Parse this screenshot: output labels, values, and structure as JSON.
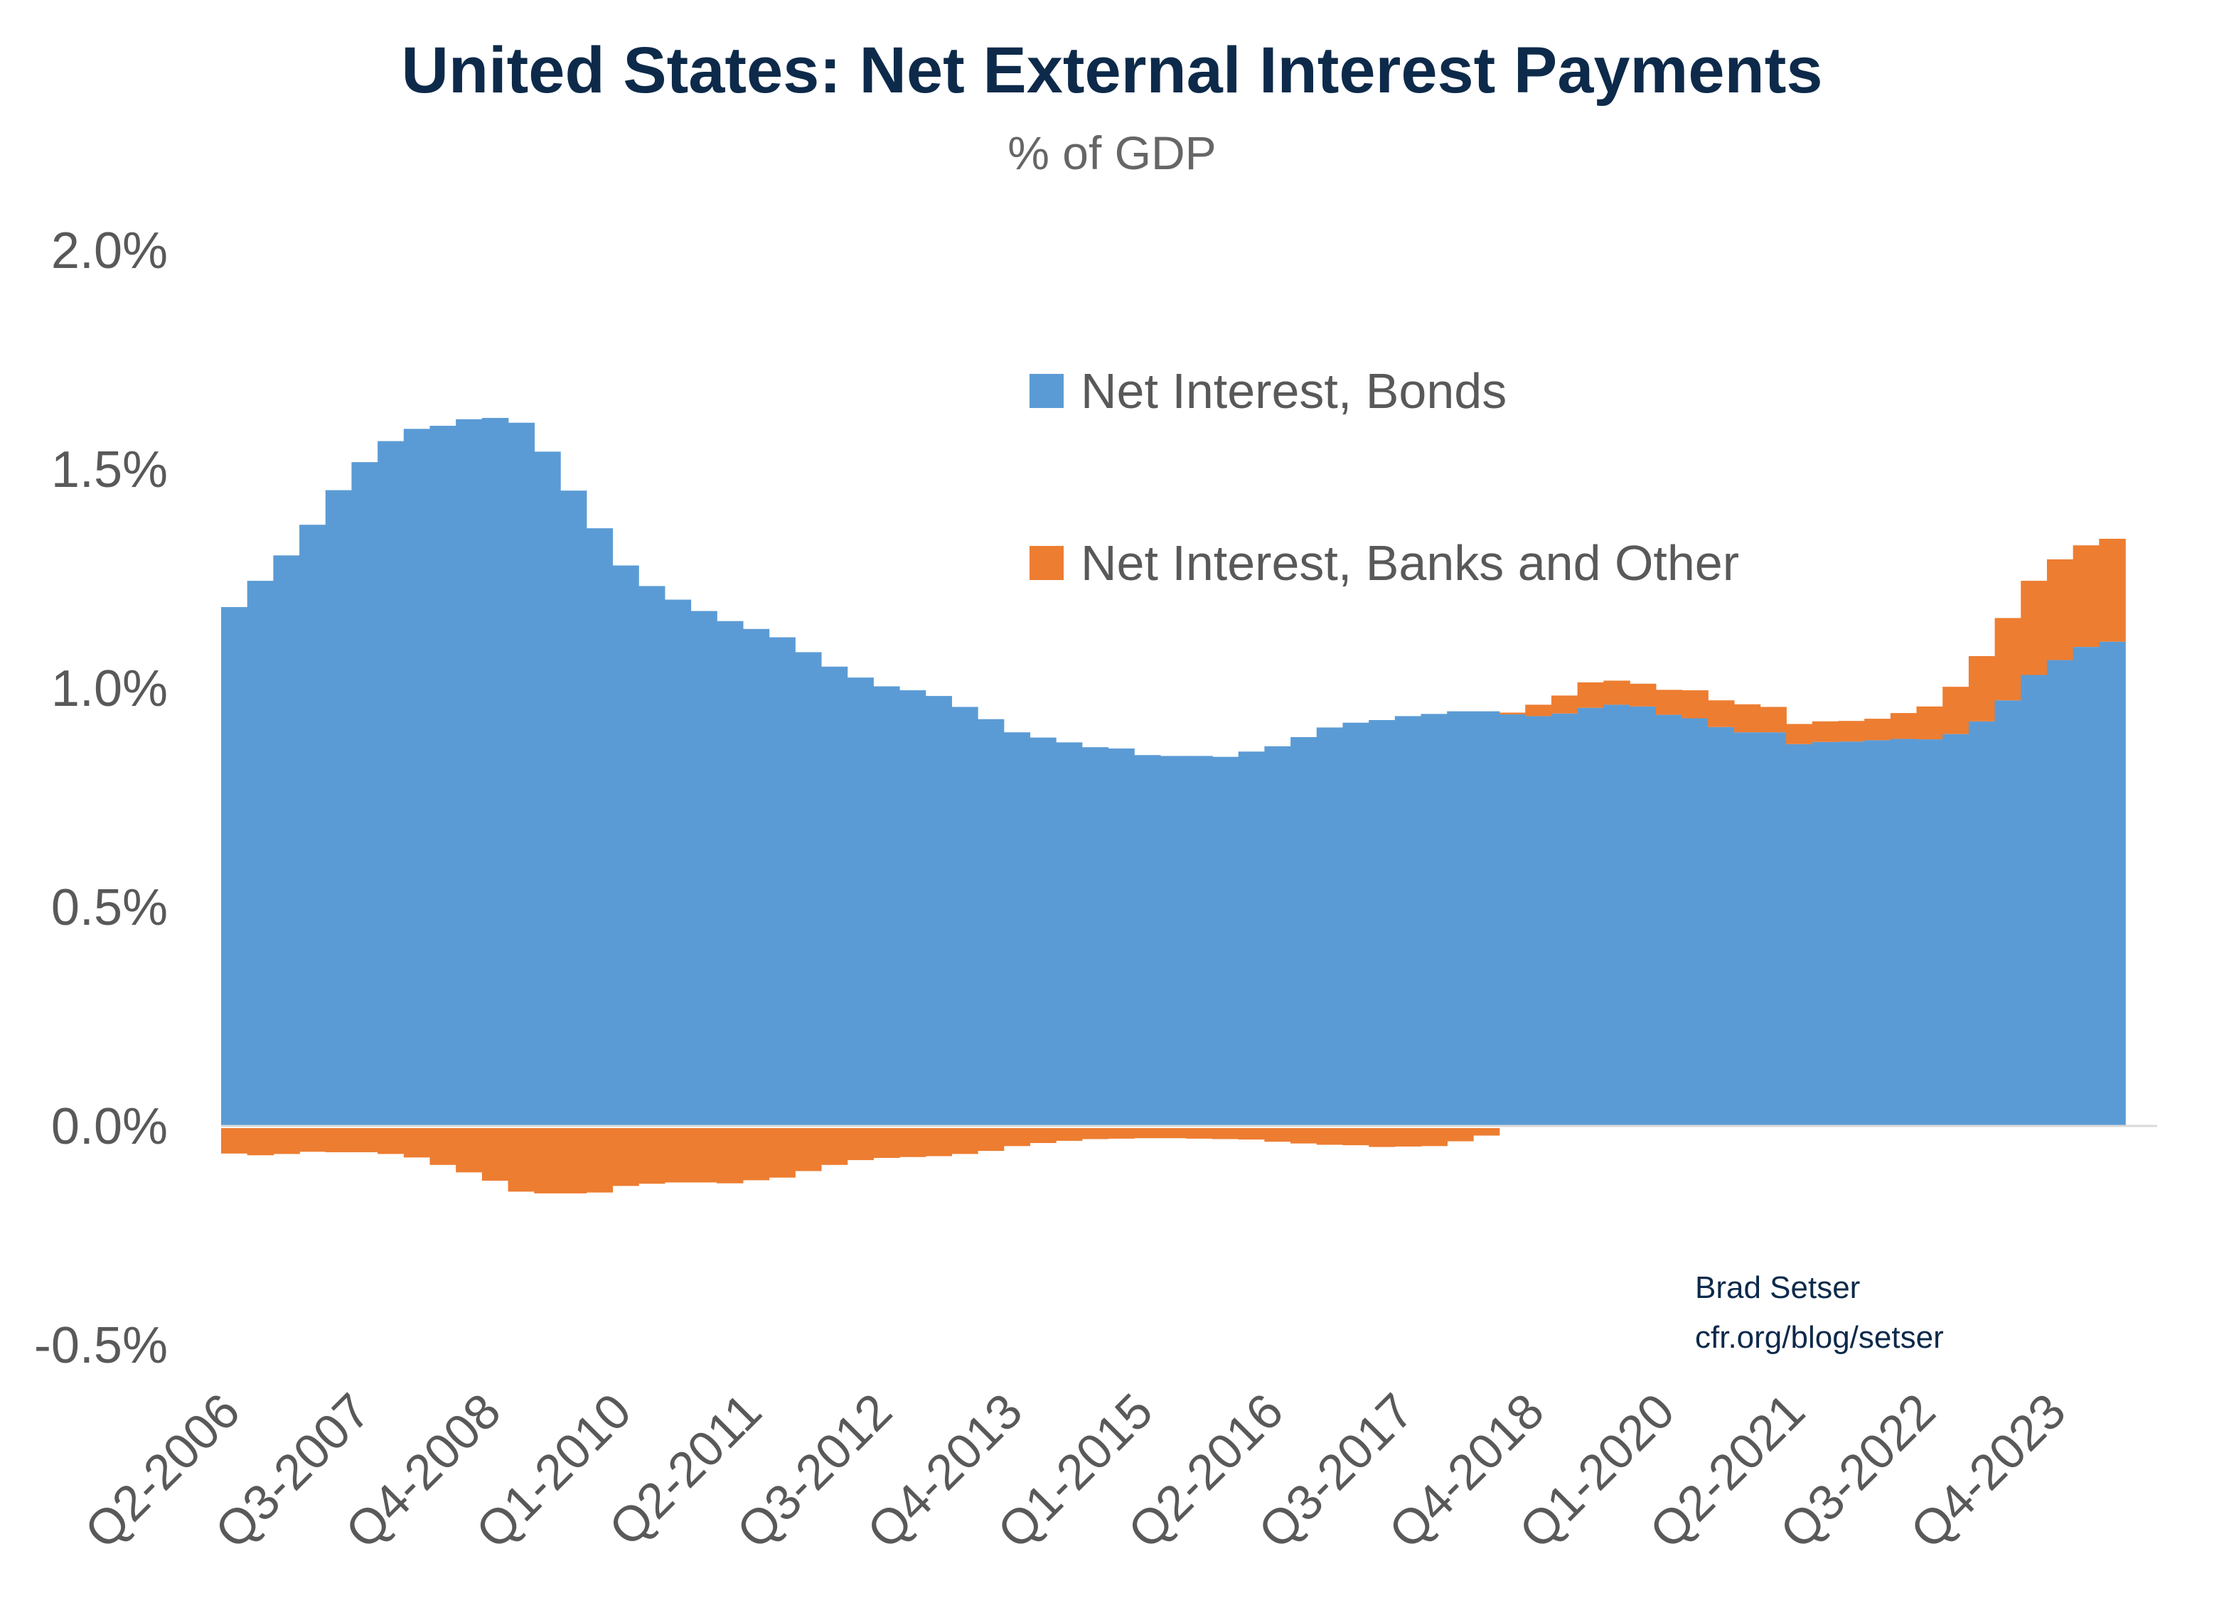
{
  "chart_data": {
    "type": "bar",
    "stacked": true,
    "title": "United States: Net External Interest Payments",
    "subtitle": "% of GDP",
    "xlabel": "",
    "ylabel": "",
    "ylim": [
      -0.5,
      2.0
    ],
    "y_ticks": [
      "2.0%",
      "1.5%",
      "1.0%",
      "0.5%",
      "0.0%",
      "-0.5%"
    ],
    "y_tick_values": [
      2.0,
      1.5,
      1.0,
      0.5,
      0.0,
      -0.5
    ],
    "grid": false,
    "legend_position": "top-right",
    "x_tick_labels": [
      "Q2-2006",
      "Q3-2007",
      "Q4-2008",
      "Q1-2010",
      "Q2-2011",
      "Q3-2012",
      "Q4-2013",
      "Q1-2015",
      "Q2-2016",
      "Q3-2017",
      "Q4-2018",
      "Q1-2020",
      "Q2-2021",
      "Q3-2022",
      "Q4-2023"
    ],
    "categories": [
      "Q2-2006",
      "Q3-2006",
      "Q4-2006",
      "Q1-2007",
      "Q2-2007",
      "Q3-2007",
      "Q4-2007",
      "Q1-2008",
      "Q2-2008",
      "Q3-2008",
      "Q4-2008",
      "Q1-2009",
      "Q2-2009",
      "Q3-2009",
      "Q4-2009",
      "Q1-2010",
      "Q2-2010",
      "Q3-2010",
      "Q4-2010",
      "Q1-2011",
      "Q2-2011",
      "Q3-2011",
      "Q4-2011",
      "Q1-2012",
      "Q2-2012",
      "Q3-2012",
      "Q4-2012",
      "Q1-2013",
      "Q2-2013",
      "Q3-2013",
      "Q4-2013",
      "Q1-2014",
      "Q2-2014",
      "Q3-2014",
      "Q4-2014",
      "Q1-2015",
      "Q2-2015",
      "Q3-2015",
      "Q4-2015",
      "Q1-2016",
      "Q2-2016",
      "Q3-2016",
      "Q4-2016",
      "Q1-2017",
      "Q2-2017",
      "Q3-2017",
      "Q4-2017",
      "Q1-2018",
      "Q2-2018",
      "Q3-2018",
      "Q4-2018",
      "Q1-2019",
      "Q2-2019",
      "Q3-2019",
      "Q4-2019",
      "Q1-2020",
      "Q2-2020",
      "Q3-2020",
      "Q4-2020",
      "Q1-2021",
      "Q2-2021",
      "Q3-2021",
      "Q4-2021",
      "Q1-2022",
      "Q2-2022",
      "Q3-2022",
      "Q4-2022",
      "Q1-2023",
      "Q2-2023",
      "Q3-2023",
      "Q4-2023",
      "Q1-2024",
      "Q2-2024"
    ],
    "series": [
      {
        "name": "Net Interest, Bonds",
        "color": "#5b9bd5",
        "values": [
          1.185,
          1.245,
          1.303,
          1.373,
          1.452,
          1.516,
          1.564,
          1.592,
          1.599,
          1.614,
          1.617,
          1.606,
          1.54,
          1.451,
          1.365,
          1.28,
          1.233,
          1.202,
          1.176,
          1.153,
          1.135,
          1.116,
          1.082,
          1.049,
          1.024,
          1.004,
          0.995,
          0.982,
          0.957,
          0.929,
          0.899,
          0.887,
          0.876,
          0.865,
          0.862,
          0.847,
          0.845,
          0.845,
          0.843,
          0.855,
          0.867,
          0.888,
          0.91,
          0.921,
          0.927,
          0.936,
          0.941,
          0.947,
          0.947,
          0.94,
          0.936,
          0.942,
          0.955,
          0.962,
          0.958,
          0.939,
          0.931,
          0.911,
          0.899,
          0.899,
          0.872,
          0.877,
          0.878,
          0.881,
          0.884,
          0.883,
          0.895,
          0.924,
          0.972,
          1.03,
          1.064,
          1.094,
          1.106
        ]
      },
      {
        "name": "Net Interest, Banks and Other",
        "color": "#ed7d31",
        "values": [
          -0.063,
          -0.067,
          -0.064,
          -0.059,
          -0.06,
          -0.06,
          -0.064,
          -0.072,
          -0.089,
          -0.106,
          -0.125,
          -0.15,
          -0.154,
          -0.154,
          -0.152,
          -0.137,
          -0.132,
          -0.129,
          -0.129,
          -0.131,
          -0.124,
          -0.118,
          -0.103,
          -0.089,
          -0.078,
          -0.073,
          -0.071,
          -0.069,
          -0.064,
          -0.057,
          -0.046,
          -0.039,
          -0.034,
          -0.03,
          -0.029,
          -0.028,
          -0.028,
          -0.029,
          -0.03,
          -0.031,
          -0.036,
          -0.04,
          -0.043,
          -0.044,
          -0.048,
          -0.047,
          -0.046,
          -0.035,
          -0.022,
          0.004,
          0.026,
          0.041,
          0.058,
          0.055,
          0.052,
          0.057,
          0.064,
          0.061,
          0.064,
          0.058,
          0.046,
          0.047,
          0.047,
          0.049,
          0.059,
          0.075,
          0.108,
          0.149,
          0.188,
          0.215,
          0.23,
          0.232,
          0.235
        ]
      }
    ]
  },
  "credit": {
    "author": "Brad Setser",
    "url": "cfr.org/blog/setser"
  }
}
